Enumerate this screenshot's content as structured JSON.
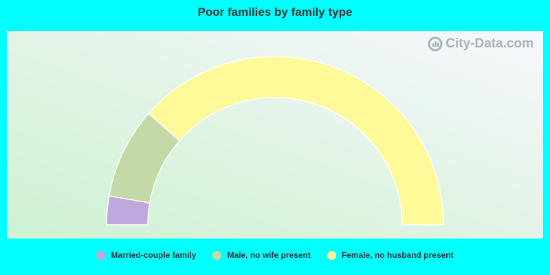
{
  "chart_data": {
    "type": "pie",
    "variant": "half-donut",
    "title": "Poor families by family type",
    "categories": [
      "Married-couple family",
      "Male, no wife present",
      "Female, no husband present"
    ],
    "values": [
      5.5,
      17.5,
      77.0
    ],
    "colors": [
      "#c0a8dc",
      "#c5d9a8",
      "#fffa99"
    ],
    "legend_position": "bottom"
  },
  "watermark": {
    "text": "City-Data.com"
  }
}
